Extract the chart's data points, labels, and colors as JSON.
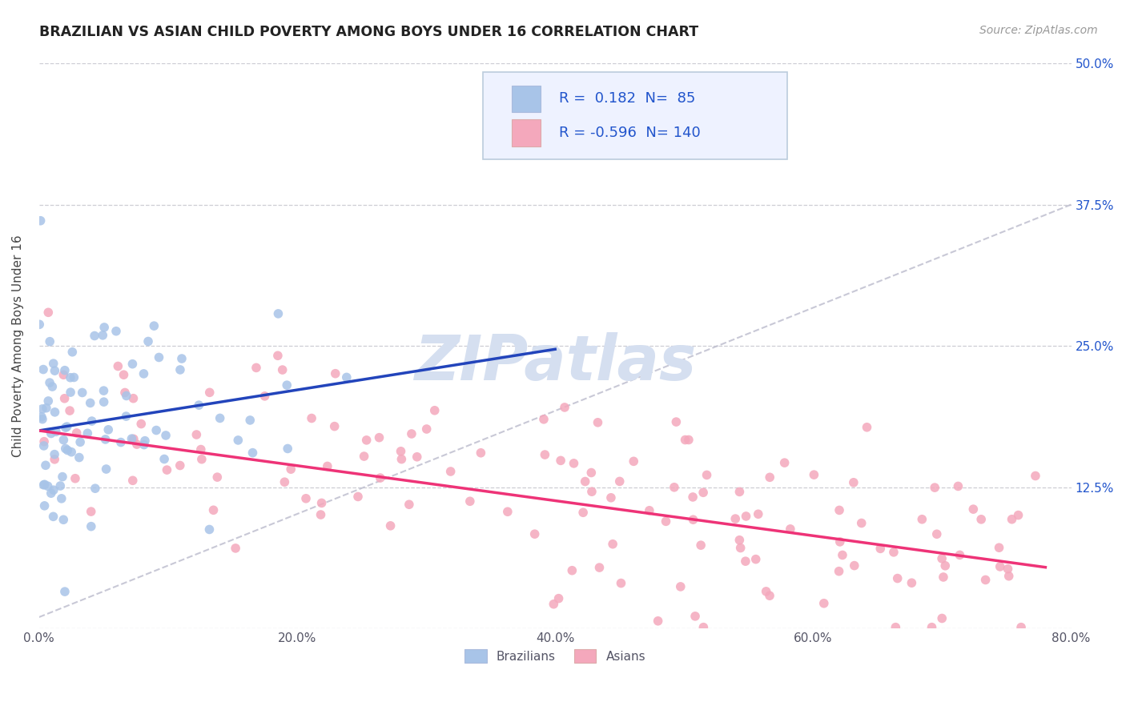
{
  "title": "BRAZILIAN VS ASIAN CHILD POVERTY AMONG BOYS UNDER 16 CORRELATION CHART",
  "source": "Source: ZipAtlas.com",
  "ylabel": "Child Poverty Among Boys Under 16",
  "xlim": [
    0.0,
    0.8
  ],
  "ylim": [
    0.0,
    0.5
  ],
  "xticks": [
    0.0,
    0.2,
    0.4,
    0.6,
    0.8
  ],
  "xticklabels": [
    "0.0%",
    "20.0%",
    "40.0%",
    "60.0%",
    "80.0%"
  ],
  "yticks": [
    0.0,
    0.125,
    0.25,
    0.375,
    0.5
  ],
  "right_ytick_labels": [
    "",
    "12.5%",
    "25.0%",
    "37.5%",
    "50.0%"
  ],
  "bg_color": "#ffffff",
  "grid_color": "#c8c8d0",
  "watermark": "ZIPatlas",
  "watermark_color": "#d5dff0",
  "brazilian_color": "#a8c4e8",
  "asian_color": "#f4a8bc",
  "brazilian_line_color": "#2244bb",
  "asian_line_color": "#ee3377",
  "ref_line_color": "#bbbbcc",
  "R_brazilian": 0.182,
  "N_brazilian": 85,
  "R_asian": -0.596,
  "N_asian": 140,
  "legend_facecolor": "#eef2ff",
  "legend_edgecolor": "#bbccdd",
  "title_color": "#222222",
  "axis_label_color": "#444444",
  "tick_color": "#555566",
  "stat_color": "#2255cc",
  "seed": 42,
  "braz_intercept": 0.175,
  "braz_slope": 0.18,
  "braz_noise_std": 0.055,
  "asian_intercept": 0.175,
  "asian_slope": -0.155,
  "asian_noise_std": 0.045
}
